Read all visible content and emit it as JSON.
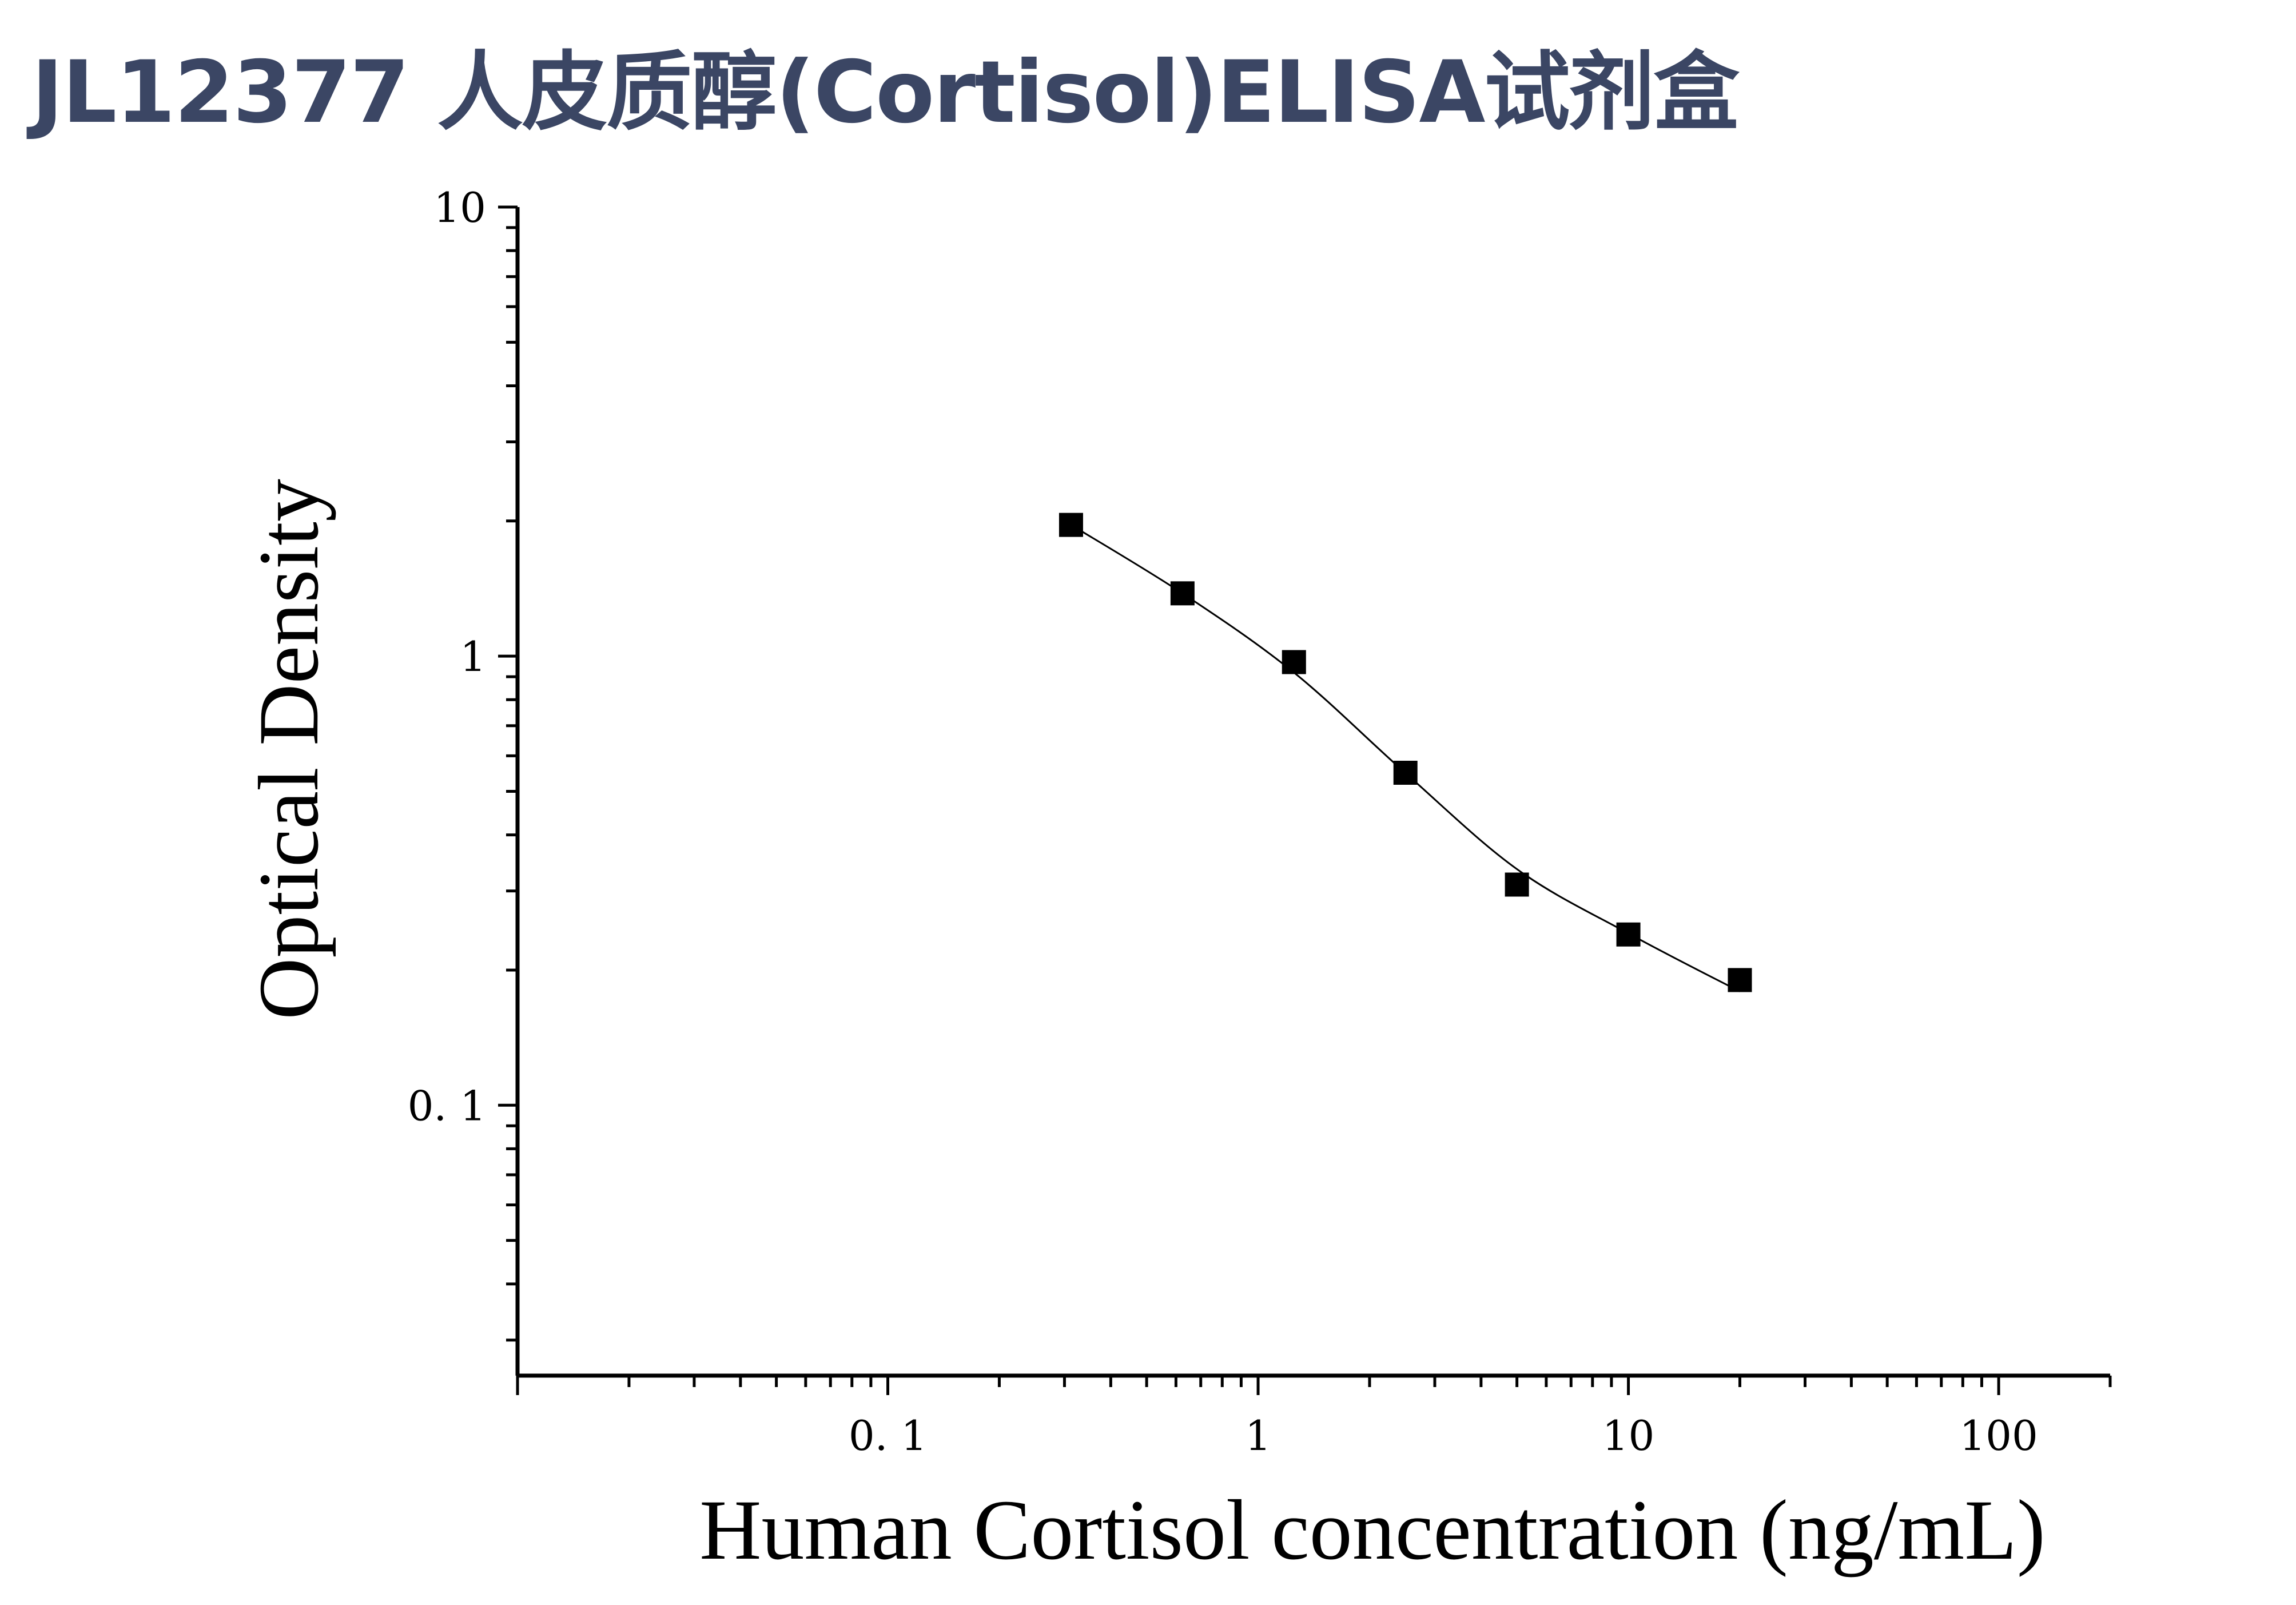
{
  "page": {
    "title": "JL12377 人皮质醇(Cortisol)ELISA试剂盒",
    "title_color": "#3b4664"
  },
  "chart_data": {
    "type": "scatter",
    "title": "JL12377 人皮质醇(Cortisol)ELISA试剂盒",
    "xlabel": "Human Cortisol concentration (ng/mL)",
    "ylabel": "Optical Density",
    "xscale": "log",
    "yscale": "log",
    "xlim": [
      0.01,
      200
    ],
    "ylim": [
      0.025,
      10
    ],
    "x_ticks": [
      {
        "value": 0.1,
        "label": "0. 1"
      },
      {
        "value": 1,
        "label": "1"
      },
      {
        "value": 10,
        "label": "10"
      },
      {
        "value": 100,
        "label": "100"
      }
    ],
    "y_ticks": [
      {
        "value": 0.1,
        "label": "0. 1"
      },
      {
        "value": 1,
        "label": "1"
      },
      {
        "value": 10,
        "label": "10"
      }
    ],
    "grid": false,
    "legend": "none",
    "series": [
      {
        "marker": "square",
        "color": "#000000",
        "x": [
          0.3125,
          0.625,
          1.25,
          2.5,
          5,
          10,
          20
        ],
        "y": [
          1.96,
          1.38,
          0.97,
          0.55,
          0.31,
          0.24,
          0.19
        ]
      }
    ],
    "fit_curve": {
      "type": "4PL",
      "color": "#000000",
      "x_range": [
        0.3125,
        20
      ]
    }
  }
}
